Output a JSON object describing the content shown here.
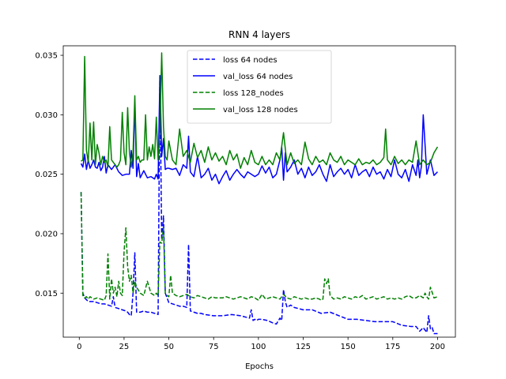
{
  "chart_data": {
    "type": "line",
    "title": "RNN 4 layers",
    "xlabel": "Epochs",
    "ylabel": "",
    "xlim": [
      -8.95,
      209.95
    ],
    "ylim": [
      0.0113,
      0.0358
    ],
    "x_ticks": [
      0,
      25,
      50,
      75,
      100,
      125,
      150,
      175,
      200
    ],
    "y_ticks": [
      0.015,
      0.02,
      0.025,
      0.03,
      0.035
    ],
    "y_tick_labels": [
      "0.015",
      "0.020",
      "0.025",
      "0.030",
      "0.035"
    ],
    "grid": false,
    "legend_position": "top-center",
    "series": [
      {
        "name": "loss 64 nodes",
        "color": "#0000ff",
        "dash": "dashed",
        "x": [
          1,
          2,
          3,
          5,
          8,
          10,
          12,
          14,
          16,
          18,
          19,
          20,
          22,
          24,
          26,
          27,
          28,
          29,
          30,
          31,
          32,
          34,
          36,
          38,
          40,
          42,
          43,
          44,
          45,
          46,
          47,
          48,
          50,
          52,
          54,
          56,
          58,
          60,
          61,
          62,
          64,
          66,
          68,
          70,
          75,
          80,
          85,
          90,
          95,
          96,
          97,
          98,
          99,
          100,
          102,
          105,
          108,
          110,
          112,
          113,
          114,
          115,
          116,
          118,
          120,
          125,
          130,
          135,
          140,
          145,
          150,
          155,
          160,
          165,
          170,
          175,
          180,
          185,
          188,
          190,
          192,
          194,
          195,
          196,
          197,
          198,
          200
        ],
        "y": [
          0.0235,
          0.015,
          0.0146,
          0.0143,
          0.0143,
          0.0142,
          0.0141,
          0.0141,
          0.014,
          0.0139,
          0.0147,
          0.0138,
          0.0137,
          0.0136,
          0.0135,
          0.0134,
          0.0132,
          0.0131,
          0.015,
          0.0184,
          0.0134,
          0.0134,
          0.0135,
          0.0134,
          0.0134,
          0.0133,
          0.0133,
          0.0132,
          0.0333,
          0.0195,
          0.0215,
          0.015,
          0.0142,
          0.0141,
          0.014,
          0.0139,
          0.0139,
          0.0138,
          0.0191,
          0.0135,
          0.0134,
          0.0133,
          0.0133,
          0.0132,
          0.0131,
          0.0131,
          0.0132,
          0.0131,
          0.0129,
          0.0136,
          0.0127,
          0.0128,
          0.0127,
          0.0128,
          0.0128,
          0.0127,
          0.0125,
          0.0124,
          0.0129,
          0.0127,
          0.0153,
          0.0143,
          0.0138,
          0.014,
          0.0138,
          0.0136,
          0.0136,
          0.0133,
          0.0134,
          0.0131,
          0.0128,
          0.0128,
          0.0127,
          0.0126,
          0.0126,
          0.0126,
          0.0123,
          0.0122,
          0.0122,
          0.0118,
          0.0121,
          0.0117,
          0.0131,
          0.012,
          0.0121,
          0.0116,
          0.0116
        ]
      },
      {
        "name": "val_loss 64 nodes",
        "color": "#0000ff",
        "dash": "solid",
        "x": [
          1,
          2,
          3,
          4,
          5,
          6,
          7,
          8,
          9,
          10,
          11,
          12,
          13,
          14,
          15,
          16,
          18,
          20,
          22,
          24,
          26,
          28,
          29,
          30,
          31,
          32,
          33,
          34,
          36,
          38,
          40,
          42,
          43,
          44,
          45,
          46,
          47,
          48,
          49,
          50,
          52,
          54,
          56,
          58,
          60,
          61,
          62,
          64,
          66,
          68,
          70,
          72,
          74,
          76,
          78,
          80,
          82,
          84,
          86,
          88,
          90,
          92,
          94,
          96,
          98,
          100,
          102,
          104,
          106,
          108,
          110,
          112,
          113,
          114,
          115,
          116,
          118,
          120,
          122,
          124,
          126,
          128,
          130,
          132,
          134,
          136,
          138,
          140,
          142,
          144,
          146,
          148,
          150,
          152,
          154,
          156,
          158,
          160,
          162,
          164,
          166,
          168,
          170,
          172,
          174,
          176,
          178,
          180,
          182,
          184,
          186,
          188,
          189,
          190,
          191,
          192,
          194,
          196,
          198,
          200
        ],
        "y": [
          0.0259,
          0.0256,
          0.0267,
          0.0254,
          0.0262,
          0.0255,
          0.0258,
          0.0262,
          0.0256,
          0.0255,
          0.026,
          0.0253,
          0.0256,
          0.0265,
          0.0251,
          0.0258,
          0.0254,
          0.0258,
          0.0252,
          0.0249,
          0.025,
          0.025,
          0.027,
          0.0255,
          0.031,
          0.0248,
          0.0259,
          0.0247,
          0.0253,
          0.0247,
          0.0248,
          0.0246,
          0.025,
          0.0246,
          0.0332,
          0.0265,
          0.028,
          0.0254,
          0.0255,
          0.0255,
          0.0254,
          0.0255,
          0.0249,
          0.0258,
          0.0255,
          0.0282,
          0.0252,
          0.0248,
          0.0265,
          0.0247,
          0.025,
          0.0255,
          0.0245,
          0.025,
          0.0242,
          0.0248,
          0.0253,
          0.0245,
          0.025,
          0.0254,
          0.025,
          0.0247,
          0.0252,
          0.025,
          0.0248,
          0.025,
          0.0257,
          0.0251,
          0.0256,
          0.0247,
          0.025,
          0.0262,
          0.0273,
          0.0245,
          0.0268,
          0.0252,
          0.0256,
          0.0262,
          0.025,
          0.0255,
          0.0247,
          0.0256,
          0.0249,
          0.0252,
          0.0258,
          0.025,
          0.0244,
          0.0258,
          0.0248,
          0.0252,
          0.0255,
          0.025,
          0.0254,
          0.0247,
          0.0258,
          0.0249,
          0.0252,
          0.0254,
          0.0248,
          0.0256,
          0.025,
          0.0252,
          0.0246,
          0.0254,
          0.0248,
          0.0262,
          0.025,
          0.0247,
          0.0254,
          0.0244,
          0.0258,
          0.0249,
          0.0262,
          0.0247,
          0.0257,
          0.03,
          0.025,
          0.0262,
          0.0249,
          0.0252
        ]
      },
      {
        "name": "loss 128_nodes",
        "color": "#008000",
        "dash": "dashed",
        "x": [
          1,
          2,
          3,
          4,
          5,
          6,
          7,
          8,
          10,
          12,
          14,
          15,
          16,
          17,
          18,
          19,
          20,
          21,
          22,
          23,
          24,
          25,
          26,
          27,
          28,
          29,
          30,
          31,
          32,
          34,
          36,
          38,
          40,
          42,
          43,
          44,
          45,
          46,
          47,
          48,
          49,
          50,
          51,
          52,
          54,
          56,
          58,
          60,
          62,
          64,
          66,
          68,
          70,
          72,
          74,
          76,
          78,
          80,
          82,
          84,
          86,
          88,
          90,
          92,
          94,
          96,
          98,
          100,
          102,
          104,
          106,
          108,
          110,
          112,
          114,
          116,
          118,
          120,
          122,
          124,
          126,
          128,
          130,
          132,
          134,
          135,
          136,
          137,
          138,
          139,
          140,
          142,
          144,
          146,
          148,
          150,
          152,
          154,
          156,
          158,
          160,
          162,
          164,
          166,
          168,
          170,
          172,
          174,
          176,
          178,
          180,
          182,
          184,
          186,
          188,
          190,
          192,
          193,
          194,
          195,
          196,
          198,
          200
        ],
        "y": [
          0.0235,
          0.0148,
          0.0146,
          0.0147,
          0.0145,
          0.0147,
          0.0146,
          0.0145,
          0.0146,
          0.0145,
          0.0144,
          0.0148,
          0.0183,
          0.0145,
          0.0162,
          0.015,
          0.0155,
          0.0147,
          0.016,
          0.015,
          0.0148,
          0.0185,
          0.0205,
          0.0172,
          0.016,
          0.0165,
          0.015,
          0.016,
          0.0155,
          0.015,
          0.0148,
          0.016,
          0.015,
          0.0148,
          0.015,
          0.0148,
          0.0193,
          0.0192,
          0.0205,
          0.015,
          0.0148,
          0.0147,
          0.0165,
          0.015,
          0.0148,
          0.0147,
          0.0148,
          0.0149,
          0.0147,
          0.0146,
          0.0148,
          0.0147,
          0.0146,
          0.0145,
          0.0147,
          0.0146,
          0.0146,
          0.0146,
          0.0147,
          0.0146,
          0.0145,
          0.0146,
          0.0147,
          0.0146,
          0.0145,
          0.0147,
          0.0146,
          0.0144,
          0.0149,
          0.0145,
          0.0146,
          0.0147,
          0.0146,
          0.0145,
          0.0149,
          0.0146,
          0.0145,
          0.0147,
          0.0146,
          0.0145,
          0.0146,
          0.0145,
          0.0145,
          0.0146,
          0.0145,
          0.0144,
          0.0145,
          0.0162,
          0.0158,
          0.0162,
          0.0148,
          0.0145,
          0.0146,
          0.0145,
          0.0147,
          0.0146,
          0.0145,
          0.0147,
          0.0146,
          0.0148,
          0.0145,
          0.0146,
          0.0147,
          0.0145,
          0.0146,
          0.0147,
          0.0145,
          0.0146,
          0.0145,
          0.0146,
          0.0145,
          0.0147,
          0.0148,
          0.0146,
          0.0146,
          0.0148,
          0.0146,
          0.015,
          0.0147,
          0.0145,
          0.0155,
          0.0146,
          0.0147
        ]
      },
      {
        "name": "val_loss 128 nodes",
        "color": "#008000",
        "dash": "solid",
        "x": [
          1,
          2,
          3,
          4,
          5,
          6,
          7,
          8,
          9,
          10,
          11,
          12,
          13,
          14,
          15,
          16,
          17,
          18,
          19,
          20,
          21,
          22,
          23,
          24,
          25,
          26,
          27,
          28,
          29,
          30,
          31,
          32,
          33,
          34,
          35,
          36,
          37,
          38,
          39,
          40,
          41,
          42,
          43,
          44,
          45,
          46,
          47,
          48,
          49,
          50,
          52,
          54,
          56,
          58,
          60,
          62,
          64,
          66,
          68,
          70,
          72,
          74,
          76,
          78,
          80,
          82,
          84,
          86,
          88,
          90,
          92,
          94,
          96,
          98,
          100,
          102,
          104,
          106,
          108,
          110,
          112,
          114,
          116,
          118,
          120,
          122,
          124,
          126,
          128,
          130,
          132,
          134,
          136,
          138,
          140,
          142,
          144,
          146,
          148,
          150,
          152,
          154,
          156,
          158,
          160,
          162,
          164,
          166,
          168,
          170,
          171,
          172,
          174,
          176,
          178,
          180,
          182,
          184,
          186,
          188,
          190,
          192,
          194,
          196,
          198,
          200
        ],
        "y": [
          0.0261,
          0.0262,
          0.0349,
          0.027,
          0.026,
          0.0293,
          0.0262,
          0.0294,
          0.0258,
          0.0275,
          0.0268,
          0.0258,
          0.0265,
          0.026,
          0.0262,
          0.0256,
          0.029,
          0.0262,
          0.026,
          0.0258,
          0.0256,
          0.0258,
          0.0262,
          0.0302,
          0.0268,
          0.0258,
          0.0306,
          0.0268,
          0.0256,
          0.0268,
          0.0316,
          0.0262,
          0.0265,
          0.026,
          0.0262,
          0.0262,
          0.03,
          0.0262,
          0.0273,
          0.0265,
          0.0275,
          0.0263,
          0.0298,
          0.0262,
          0.0286,
          0.0352,
          0.029,
          0.0265,
          0.0262,
          0.0278,
          0.0262,
          0.0258,
          0.0288,
          0.0265,
          0.027,
          0.026,
          0.0276,
          0.0264,
          0.027,
          0.026,
          0.0273,
          0.0262,
          0.0268,
          0.0261,
          0.0265,
          0.0258,
          0.027,
          0.0262,
          0.0267,
          0.0255,
          0.0264,
          0.0258,
          0.027,
          0.026,
          0.0258,
          0.0265,
          0.0258,
          0.0262,
          0.0258,
          0.0268,
          0.0262,
          0.0285,
          0.0258,
          0.0268,
          0.0259,
          0.0262,
          0.0258,
          0.0277,
          0.0263,
          0.0258,
          0.0265,
          0.026,
          0.0262,
          0.0258,
          0.0268,
          0.0262,
          0.026,
          0.0265,
          0.0258,
          0.0262,
          0.026,
          0.0258,
          0.0263,
          0.0258,
          0.026,
          0.0259,
          0.0262,
          0.0258,
          0.026,
          0.0264,
          0.0288,
          0.0262,
          0.0258,
          0.0265,
          0.0259,
          0.0262,
          0.0258,
          0.0262,
          0.026,
          0.0278,
          0.0258,
          0.0262,
          0.0258,
          0.026,
          0.0268,
          0.0273
        ]
      }
    ]
  }
}
